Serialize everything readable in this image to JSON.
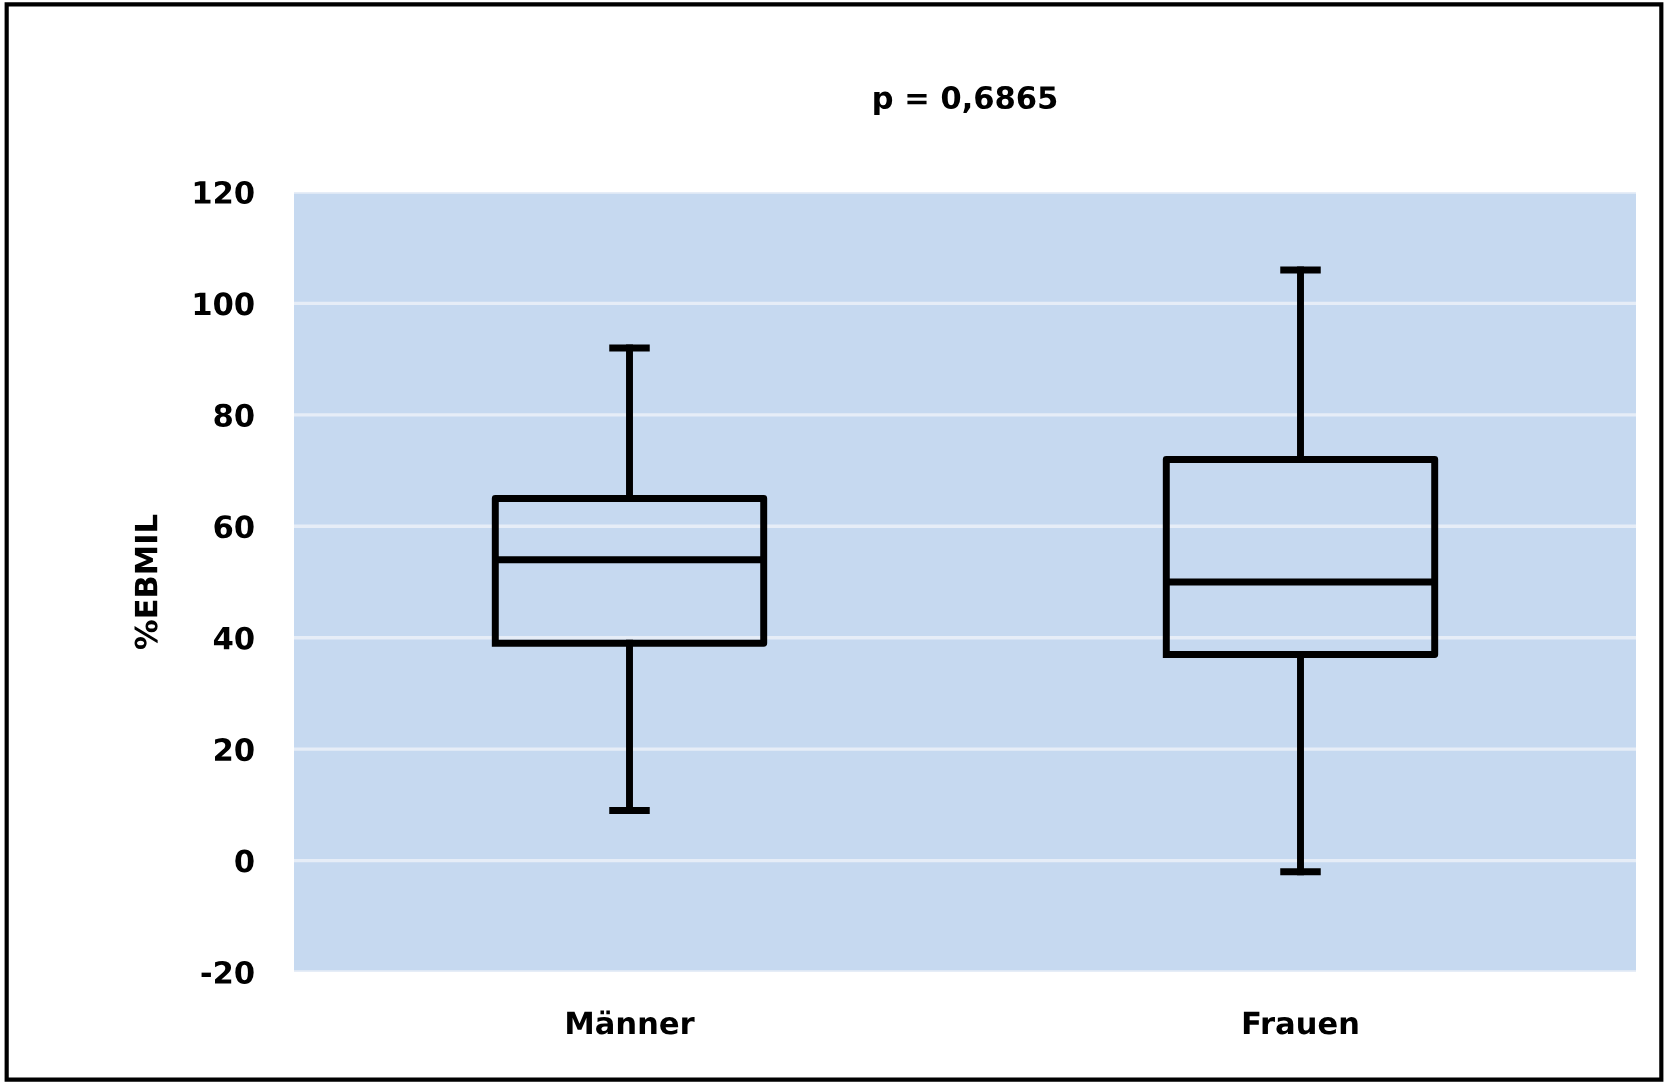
{
  "chart_data": {
    "type": "box",
    "title": "p = 0,6865",
    "ylabel": "%EBMIL",
    "categories": [
      "Männer",
      "Frauen"
    ],
    "boxes": [
      {
        "low": 9,
        "q1": 39,
        "median": 54,
        "q3": 65,
        "high": 92
      },
      {
        "low": -2,
        "q1": 37,
        "median": 50,
        "q3": 72,
        "high": 106
      }
    ],
    "color": "#000000",
    "ylim": [
      -20,
      120
    ],
    "yticks": [
      -20,
      0,
      20,
      40,
      60,
      80,
      100,
      120
    ],
    "grid": "y"
  }
}
